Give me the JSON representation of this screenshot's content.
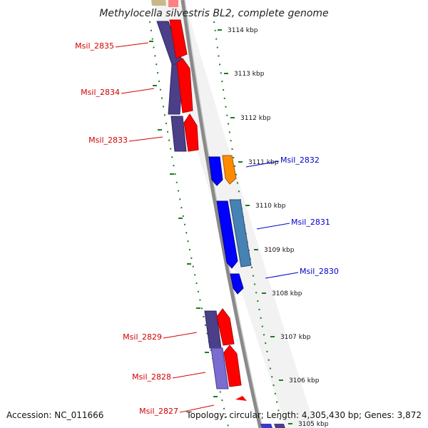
{
  "title": "Methylocella silvestris BL2, complete genome",
  "footer": {
    "accession": "Accession: NC_011666",
    "topology": "Topology: circular; Length: 4,305,430 bp; Genes: 3,872"
  },
  "colors": {
    "background": "#ffffff",
    "backbone": "#888888",
    "tick": "#1f7a1f",
    "left_label": "#d40000",
    "right_label": "#0000cc",
    "gene_red": "#ff0000",
    "gene_navy": "#4a3f88",
    "gene_blue": "#0000ff",
    "gene_steelblue": "#4682b4",
    "gene_orange": "#ff8c00",
    "gene_lavender": "#7a6cd0"
  },
  "ticks": [
    {
      "label": "3114 kbp",
      "kbp": 3114
    },
    {
      "label": "3113 kbp",
      "kbp": 3113
    },
    {
      "label": "3112 kbp",
      "kbp": 3112
    },
    {
      "label": "3111 kbp",
      "kbp": 3111
    },
    {
      "label": "3110 kbp",
      "kbp": 3110
    },
    {
      "label": "3109 kbp",
      "kbp": 3109
    },
    {
      "label": "3108 kbp",
      "kbp": 3108
    },
    {
      "label": "3107 kbp",
      "kbp": 3107
    },
    {
      "label": "3106 kbp",
      "kbp": 3106
    },
    {
      "label": "3105 kbp",
      "kbp": 3105
    }
  ],
  "gene_labels": [
    {
      "id": "Msil_2835",
      "side": "left"
    },
    {
      "id": "Msil_2834",
      "side": "left"
    },
    {
      "id": "Msil_2833",
      "side": "left"
    },
    {
      "id": "Msil_2832",
      "side": "right"
    },
    {
      "id": "Msil_2831",
      "side": "right"
    },
    {
      "id": "Msil_2830",
      "side": "right"
    },
    {
      "id": "Msil_2829",
      "side": "left"
    },
    {
      "id": "Msil_2828",
      "side": "left"
    },
    {
      "id": "Msil_2827",
      "side": "left"
    }
  ]
}
